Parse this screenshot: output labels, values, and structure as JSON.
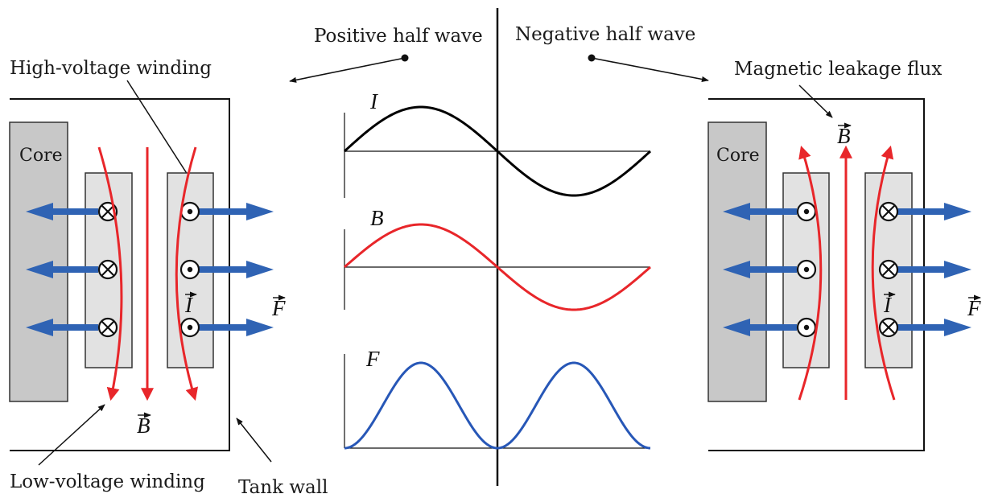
{
  "labels": {
    "positive_half_wave": "Positive half wave",
    "negative_half_wave": "Negative half wave",
    "high_voltage_winding": "High-voltage winding",
    "magnetic_leakage_flux": "Magnetic leakage flux",
    "low_voltage_winding": "Low-voltage winding",
    "tank_wall": "Tank wall",
    "core_left": "Core",
    "core_right": "Core"
  },
  "symbols": {
    "current": "I",
    "flux_density": "B",
    "force": "F"
  },
  "waveforms": [
    {
      "name": "I",
      "shape": "sine",
      "color": "#000000"
    },
    {
      "name": "B",
      "shape": "sine",
      "color": "#e8262a"
    },
    {
      "name": "F",
      "shape": "sine-squared",
      "color": "#2757b7"
    }
  ],
  "colors": {
    "force_arrow": "#2f63b4",
    "flux_line": "#e8262a",
    "core_fill": "#c8c8c8",
    "winding_fill": "#e2e2e2"
  },
  "left_panel": {
    "low_voltage_current": "into-page",
    "high_voltage_current": "out-of-page",
    "flux_direction": "down"
  },
  "right_panel": {
    "low_voltage_current": "out-of-page",
    "high_voltage_current": "into-page",
    "flux_direction": "up"
  }
}
